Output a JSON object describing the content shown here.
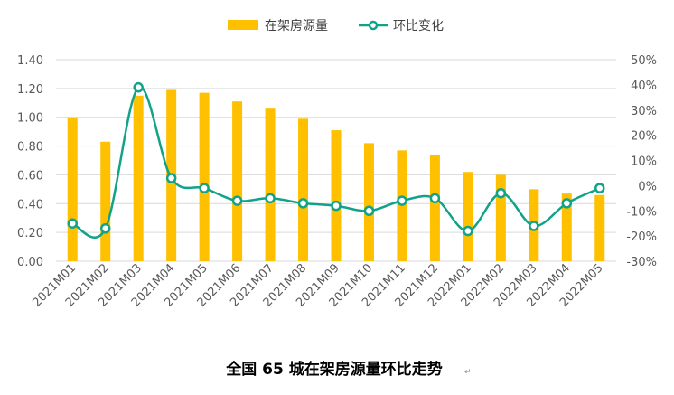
{
  "chart_data": {
    "type": "bar",
    "title": "全国 65 城在架房源量环比走势",
    "caption_mark": "↵",
    "categories": [
      "2021M01",
      "2021M02",
      "2021M03",
      "2021M04",
      "2021M05",
      "2021M06",
      "2021M07",
      "2021M08",
      "2021M09",
      "2021M10",
      "2021M11",
      "2021M12",
      "2022M01",
      "2022M02",
      "2022M03",
      "2022M04",
      "2022M05"
    ],
    "series": [
      {
        "name": "在架房源量",
        "type": "bar",
        "axis": "left",
        "color": "#FFC000",
        "values": [
          1.0,
          0.83,
          1.15,
          1.19,
          1.17,
          1.11,
          1.06,
          0.99,
          0.91,
          0.82,
          0.77,
          0.74,
          0.62,
          0.6,
          0.5,
          0.47,
          0.46
        ]
      },
      {
        "name": "环比变化",
        "type": "line",
        "axis": "right",
        "color": "#11A38A",
        "values": [
          -15.0,
          -17.0,
          39.0,
          3.0,
          -1.0,
          -6.0,
          -5.0,
          -7.0,
          -8.0,
          -10.0,
          -6.0,
          -5.0,
          -18.0,
          -3.0,
          -16.0,
          -7.0,
          -1.0
        ]
      }
    ],
    "y_left": {
      "lim": [
        0,
        1.4
      ],
      "ticks": [
        "0.00",
        "0.20",
        "0.40",
        "0.60",
        "0.80",
        "1.00",
        "1.20",
        "1.40"
      ]
    },
    "y_right": {
      "lim": [
        -30,
        50
      ],
      "ticks": [
        "-30%",
        "-20%",
        "-10%",
        "0%",
        "10%",
        "20%",
        "30%",
        "40%",
        "50%"
      ]
    },
    "grid": true,
    "legend_position": "top-center"
  }
}
